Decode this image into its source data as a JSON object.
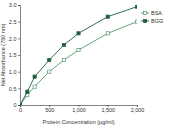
{
  "chart_data": {
    "type": "line",
    "x_label": "Protein Concentration (µg/ml)",
    "y_label": "Net Absorbance (750 nm)",
    "x": [
      0,
      125,
      250,
      500,
      750,
      1000,
      1500,
      2000
    ],
    "series": [
      {
        "name": "BSA",
        "color": "#4f9a6c",
        "marker": "square-open",
        "values": [
          0,
          0.3,
          0.55,
          1.0,
          1.35,
          1.65,
          2.15,
          2.5
        ]
      },
      {
        "name": "BGG",
        "color": "#1f5f3f",
        "marker": "square",
        "values": [
          0,
          0.4,
          0.85,
          1.35,
          1.8,
          2.15,
          2.65,
          2.95
        ]
      }
    ],
    "xlim": [
      0,
      2000
    ],
    "xticks": [
      0,
      500,
      {
        "value": 1000,
        "label": "1,000"
      },
      {
        "value": 1500,
        "label": "1,500"
      },
      {
        "value": 2000,
        "label": "2,000"
      }
    ],
    "ylim": [
      0,
      3
    ],
    "yticks": [
      0,
      0.5,
      {
        "value": 1,
        "label": "1.0"
      },
      1.5,
      {
        "value": 2,
        "label": "2.0"
      },
      2.5,
      {
        "value": 3,
        "label": "3.0"
      }
    ],
    "grid": false,
    "legend": "upper right"
  }
}
